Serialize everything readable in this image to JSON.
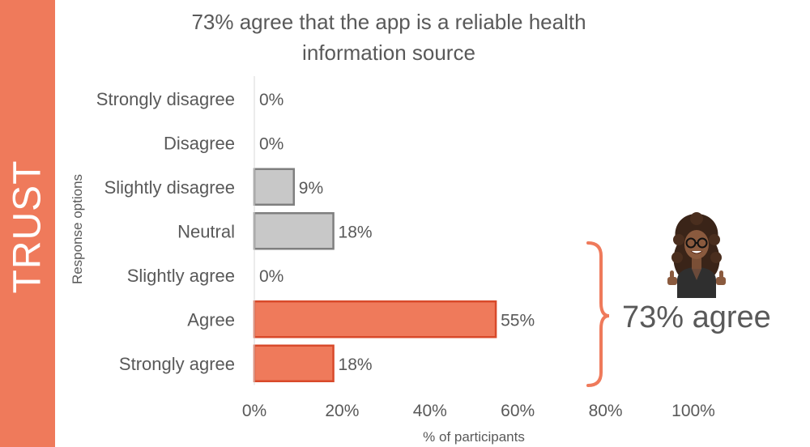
{
  "side_label": "TRUST",
  "chart_data": {
    "type": "bar",
    "orientation": "horizontal",
    "title": "73% agree that the app is a reliable health information source",
    "xlabel": "% of participants",
    "ylabel": "Response options",
    "xlim": [
      0,
      100
    ],
    "x_ticks": [
      "0%",
      "20%",
      "40%",
      "60%",
      "80%",
      "100%"
    ],
    "categories": [
      "Strongly disagree",
      "Disagree",
      "Slightly disagree",
      "Neutral",
      "Slightly agree",
      "Agree",
      "Strongly agree"
    ],
    "values": [
      0,
      0,
      9,
      18,
      0,
      55,
      18
    ],
    "value_labels": [
      "0%",
      "0%",
      "9%",
      "18%",
      "0%",
      "55%",
      "18%"
    ],
    "bar_groups": [
      "disagree",
      "disagree",
      "disagree",
      "neutral",
      "agree",
      "agree",
      "agree"
    ],
    "grid": false,
    "colors": {
      "agree_fill": "#EF7A5B",
      "agree_stroke": "#D84A2B",
      "neutral_fill": "#C8C8C8",
      "neutral_stroke": "#7F7F7F",
      "band": "#EF7A5B",
      "text": "#595959"
    },
    "annotation": {
      "text": "73% agree",
      "spans": [
        "Agree",
        "Strongly agree"
      ]
    }
  },
  "avatar_icon": "thumbs-up-avatar-icon"
}
